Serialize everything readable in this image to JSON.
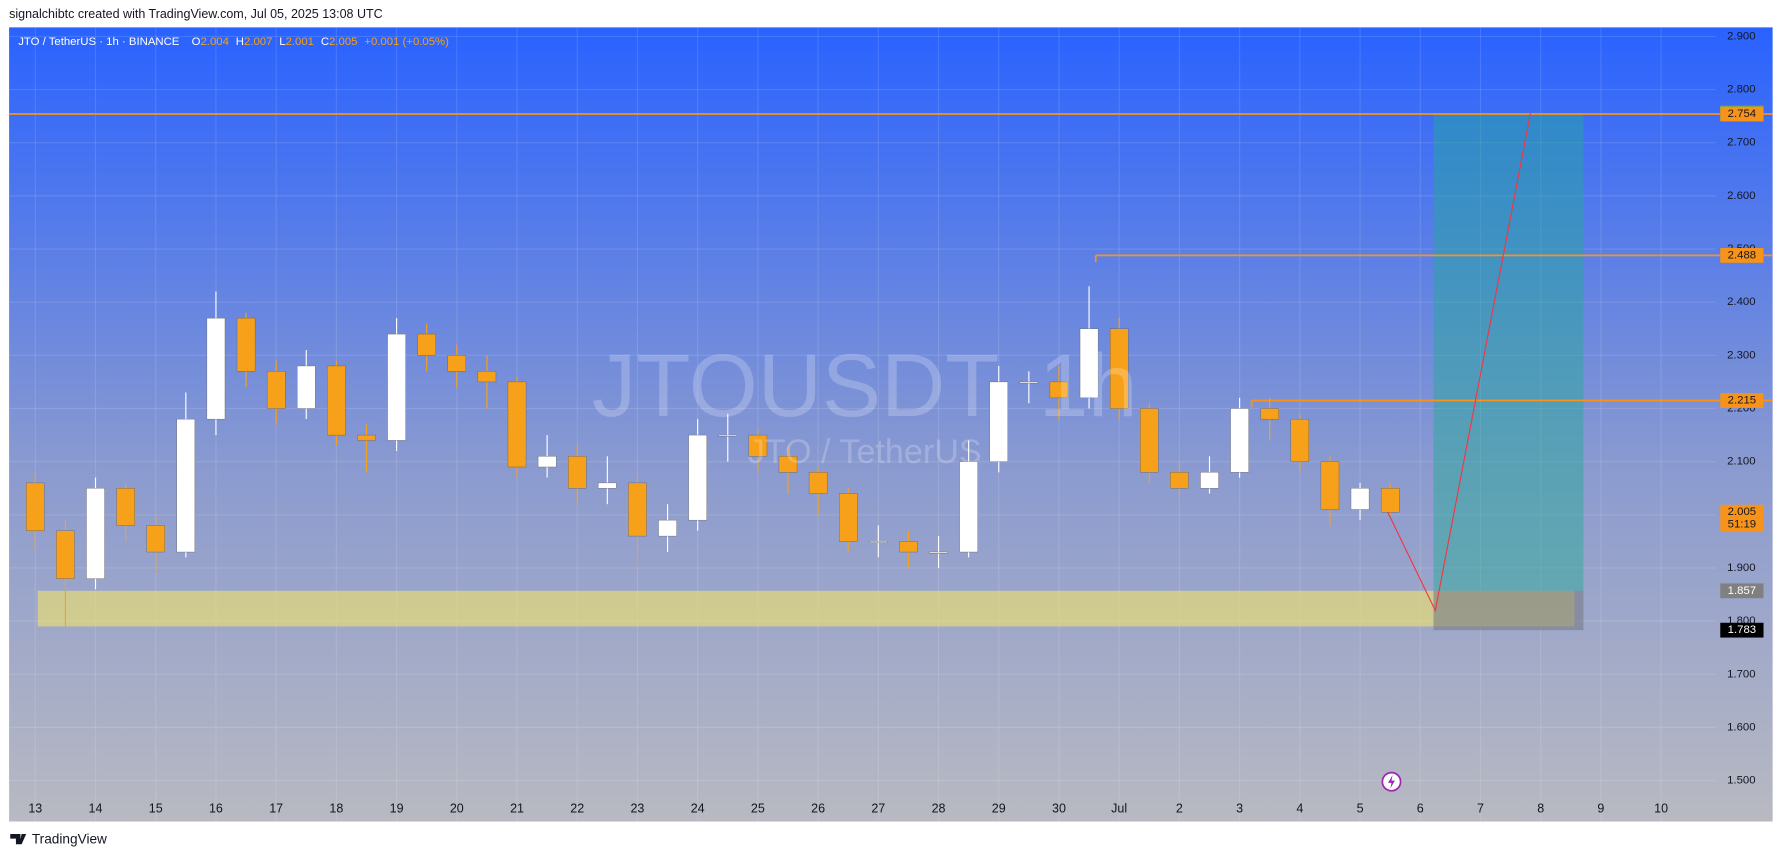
{
  "header": "signalchibtc created with TradingView.com, Jul 05, 2025 13:08 UTC",
  "footer": "TradingView",
  "chart_data": {
    "type": "candlestick",
    "symbol": "JTO / TetherUS · 1h · BINANCE",
    "ohlc_keys": [
      "O",
      "H",
      "L",
      "C"
    ],
    "ohlc_values": [
      2.004,
      2.007,
      2.001,
      2.005
    ],
    "change": "+0.001 (+0.05%)",
    "watermark": "JTOUSDT, 1h",
    "watermark_sub": "JTO / TetherUS",
    "xlim": [
      -0.435,
      27.907
    ],
    "ylim": [
      1.423,
      2.917
    ],
    "xticks": [
      {
        "value": 0,
        "label": "13"
      },
      {
        "value": 1,
        "label": "14"
      },
      {
        "value": 2,
        "label": "15"
      },
      {
        "value": 3,
        "label": "16"
      },
      {
        "value": 4,
        "label": "17"
      },
      {
        "value": 5,
        "label": "18"
      },
      {
        "value": 6,
        "label": "19"
      },
      {
        "value": 7,
        "label": "20"
      },
      {
        "value": 8,
        "label": "21"
      },
      {
        "value": 9,
        "label": "22"
      },
      {
        "value": 10,
        "label": "23"
      },
      {
        "value": 11,
        "label": "24"
      },
      {
        "value": 12,
        "label": "25"
      },
      {
        "value": 13,
        "label": "26"
      },
      {
        "value": 14,
        "label": "27"
      },
      {
        "value": 15,
        "label": "28"
      },
      {
        "value": 16,
        "label": "29"
      },
      {
        "value": 17,
        "label": "30"
      },
      {
        "value": 18,
        "label": "Jul"
      },
      {
        "value": 19,
        "label": "2"
      },
      {
        "value": 20,
        "label": "3"
      },
      {
        "value": 21,
        "label": "4"
      },
      {
        "value": 22,
        "label": "5"
      },
      {
        "value": 23,
        "label": "6"
      },
      {
        "value": 24,
        "label": "7"
      },
      {
        "value": 25,
        "label": "8"
      },
      {
        "value": 26,
        "label": "9"
      },
      {
        "value": 27,
        "label": "10"
      }
    ],
    "yticks": [
      {
        "value": 1.5,
        "label": "1.500"
      },
      {
        "value": 1.6,
        "label": "1.600"
      },
      {
        "value": 1.7,
        "label": "1.700"
      },
      {
        "value": 1.8,
        "label": "1.800"
      },
      {
        "value": 1.9,
        "label": "1.900"
      },
      {
        "value": 2.0,
        "label": "2.000"
      },
      {
        "value": 2.1,
        "label": "2.100"
      },
      {
        "value": 2.2,
        "label": "2.200"
      },
      {
        "value": 2.3,
        "label": "2.300"
      },
      {
        "value": 2.4,
        "label": "2.400"
      },
      {
        "value": 2.5,
        "label": "2.500"
      },
      {
        "value": 2.6,
        "label": "2.600"
      },
      {
        "value": 2.7,
        "label": "2.700"
      },
      {
        "value": 2.8,
        "label": "2.800"
      },
      {
        "value": 2.9,
        "label": "2.900"
      }
    ],
    "grid": true,
    "up_color": "#ffffff",
    "down_color": "#f7a11a",
    "x": [
      0,
      0.5,
      1,
      1.5,
      2,
      2.5,
      3,
      3.5,
      4,
      4.5,
      5,
      5.5,
      6,
      6.5,
      7,
      7.5,
      8,
      8.5,
      9,
      9.5,
      10,
      10.5,
      11,
      11.5,
      12,
      12.5,
      13,
      13.5,
      14,
      14.5,
      15,
      15.5,
      16,
      16.5,
      17,
      17.5,
      18,
      18.5,
      19,
      19.5,
      20,
      20.5,
      21,
      21.5,
      22,
      22.5
    ],
    "open": [
      2.06,
      1.97,
      1.88,
      2.05,
      1.98,
      1.93,
      2.18,
      2.37,
      2.27,
      2.2,
      2.28,
      2.15,
      2.14,
      2.34,
      2.3,
      2.27,
      2.25,
      2.09,
      2.11,
      2.05,
      2.06,
      1.96,
      1.99,
      2.15,
      2.15,
      2.11,
      2.08,
      2.04,
      1.95,
      1.95,
      1.93,
      1.93,
      2.1,
      2.25,
      2.25,
      2.22,
      2.35,
      2.2,
      2.08,
      2.05,
      2.08,
      2.2,
      2.18,
      2.1,
      2.01,
      2.05
    ],
    "high": [
      2.08,
      1.99,
      2.07,
      2.06,
      2.0,
      2.23,
      2.42,
      2.38,
      2.29,
      2.31,
      2.29,
      2.17,
      2.37,
      2.36,
      2.32,
      2.3,
      2.26,
      2.15,
      2.13,
      2.11,
      2.08,
      2.02,
      2.18,
      2.19,
      2.16,
      2.13,
      2.09,
      2.05,
      1.98,
      1.97,
      1.96,
      2.14,
      2.28,
      2.27,
      2.28,
      2.43,
      2.37,
      2.21,
      2.1,
      2.11,
      2.22,
      2.22,
      2.19,
      2.11,
      2.06,
      2.06
    ],
    "low": [
      1.93,
      1.79,
      1.86,
      1.95,
      1.89,
      1.92,
      2.15,
      2.24,
      2.17,
      2.18,
      2.13,
      2.08,
      2.12,
      2.27,
      2.24,
      2.2,
      2.07,
      2.07,
      2.02,
      2.02,
      1.9,
      1.93,
      1.97,
      2.1,
      2.08,
      2.04,
      2.0,
      1.93,
      1.92,
      1.9,
      1.9,
      1.92,
      2.08,
      2.21,
      2.18,
      2.2,
      2.18,
      2.06,
      2.03,
      2.04,
      2.07,
      2.14,
      2.08,
      1.98,
      1.99,
      2.0
    ],
    "close": [
      1.97,
      1.88,
      2.05,
      1.98,
      1.93,
      2.18,
      2.37,
      2.27,
      2.2,
      2.28,
      2.15,
      2.14,
      2.34,
      2.3,
      2.27,
      2.25,
      2.09,
      2.11,
      2.05,
      2.06,
      1.96,
      1.99,
      2.15,
      2.15,
      2.11,
      2.08,
      2.04,
      1.95,
      1.95,
      1.93,
      1.93,
      2.1,
      2.25,
      2.25,
      2.22,
      2.35,
      2.2,
      2.08,
      2.05,
      2.08,
      2.2,
      2.18,
      2.1,
      2.01,
      2.05,
      2.005
    ],
    "levels": [
      {
        "value": 2.754,
        "x_start": -0.435,
        "color": "#f7931a"
      },
      {
        "value": 2.488,
        "x_start": 17.61,
        "color": "#f7931a"
      },
      {
        "value": 2.215,
        "x_start": 20.2,
        "color": "#f7931a"
      }
    ],
    "zone": {
      "x_start": 0.04,
      "x_end": 25.56,
      "top": 1.857,
      "bottom": 1.79,
      "color": "#e6dc78"
    },
    "position": {
      "x_start": 23.22,
      "x_end": 25.71,
      "entry": 1.857,
      "target": 2.756,
      "stop": 1.783,
      "profit_color": "#22ab94",
      "loss_color": "#787b86"
    },
    "projection": {
      "color": "#f23645",
      "x": [
        22.46,
        23.25,
        24.83
      ],
      "y": [
        2.005,
        1.82,
        2.756
      ]
    },
    "price_labels": [
      {
        "value": 2.756,
        "color": "#4caf50"
      },
      {
        "value": 2.754,
        "color": "#f7931a"
      },
      {
        "value": 2.488,
        "color": "#f7931a"
      },
      {
        "value": 2.215,
        "color": "#f7931a"
      },
      {
        "value": 2.005,
        "color": "#f7931a"
      },
      {
        "value": 1.857,
        "color": "#808080"
      },
      {
        "value": 1.783,
        "color": "#000000"
      }
    ],
    "countdown": "51:19"
  }
}
